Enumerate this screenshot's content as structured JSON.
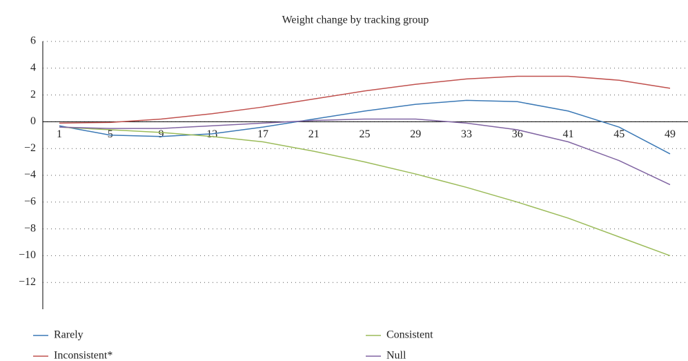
{
  "chart_data": {
    "type": "line",
    "title": "Weight change by tracking group",
    "categories": [
      "1",
      "5",
      "9",
      "13",
      "17",
      "21",
      "25",
      "29",
      "33",
      "36",
      "41",
      "45",
      "49"
    ],
    "series": [
      {
        "name": "Rarely",
        "color": "#3a78b5",
        "values": [
          -0.3,
          -1.0,
          -1.1,
          -0.9,
          -0.4,
          0.2,
          0.8,
          1.3,
          1.6,
          1.5,
          0.8,
          -0.4,
          -2.4
        ]
      },
      {
        "name": "Inconsistent*",
        "color": "#c0504d",
        "values": [
          -0.1,
          -0.05,
          0.2,
          0.6,
          1.1,
          1.7,
          2.3,
          2.8,
          3.2,
          3.4,
          3.4,
          3.1,
          2.5
        ]
      },
      {
        "name": "Consistent",
        "color": "#9bbb59",
        "values": [
          -0.4,
          -0.6,
          -0.8,
          -1.1,
          -1.5,
          -2.2,
          -3.0,
          -3.9,
          -4.9,
          -6.0,
          -7.2,
          -8.6,
          -10.0
        ]
      },
      {
        "name": "Null",
        "color": "#8064a2",
        "values": [
          -0.4,
          -0.5,
          -0.5,
          -0.3,
          -0.1,
          0.1,
          0.2,
          0.2,
          -0.1,
          -0.6,
          -1.5,
          -2.9,
          -4.7
        ]
      }
    ],
    "ylim": [
      -14,
      6
    ],
    "yticks": [
      6,
      4,
      2,
      0,
      {
        "value": -2,
        "label": "−2"
      },
      {
        "value": -4,
        "label": "−4"
      },
      {
        "value": -6,
        "label": "−6"
      },
      {
        "value": -8,
        "label": "−8"
      },
      {
        "value": -10,
        "label": "−10"
      },
      {
        "value": -12,
        "label": "−12"
      }
    ],
    "grid": true
  }
}
